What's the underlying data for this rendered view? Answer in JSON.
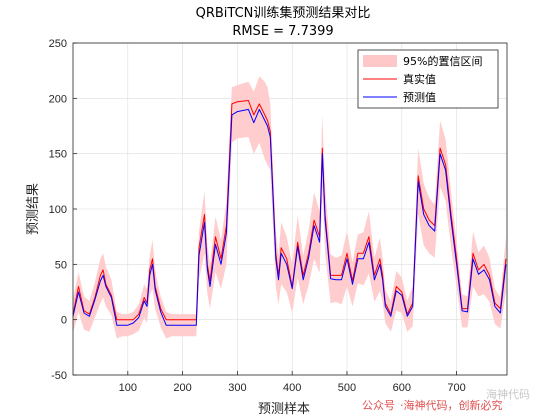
{
  "chart_data": {
    "type": "line",
    "title": "QRBiTCN训练集预测结果对比",
    "subtitle": "RMSE = 7.7399",
    "xlabel": "预测样本",
    "ylabel": "预测结果",
    "xlim": [
      0,
      792
    ],
    "ylim": [
      -50,
      250
    ],
    "xticks": [
      100,
      200,
      300,
      400,
      500,
      600,
      700
    ],
    "yticks": [
      -50,
      0,
      50,
      100,
      150,
      200,
      250
    ],
    "grid": true,
    "legend_position": "top-right",
    "series": [
      {
        "name": "95%的置信区间",
        "kind": "band",
        "color": "#ffc8c8"
      },
      {
        "name": "真实值",
        "kind": "line",
        "color": "#ff0000"
      },
      {
        "name": "预测值",
        "kind": "line",
        "color": "#0000ff"
      }
    ],
    "x": [
      0,
      10,
      20,
      30,
      40,
      50,
      55,
      60,
      70,
      80,
      90,
      100,
      110,
      120,
      130,
      135,
      140,
      145,
      150,
      155,
      160,
      170,
      180,
      190,
      200,
      210,
      220,
      225,
      230,
      240,
      245,
      250,
      260,
      270,
      280,
      290,
      300,
      320,
      330,
      340,
      350,
      355,
      360,
      370,
      375,
      380,
      390,
      400,
      410,
      420,
      430,
      440,
      450,
      455,
      460,
      470,
      480,
      490,
      500,
      510,
      520,
      530,
      540,
      550,
      560,
      565,
      570,
      580,
      590,
      600,
      610,
      620,
      630,
      640,
      650,
      660,
      670,
      680,
      690,
      700,
      710,
      720,
      730,
      740,
      750,
      760,
      770,
      780,
      790
    ],
    "real": [
      5,
      30,
      8,
      5,
      20,
      40,
      45,
      32,
      22,
      0,
      0,
      0,
      0,
      5,
      20,
      15,
      45,
      55,
      30,
      20,
      10,
      0,
      0,
      0,
      0,
      0,
      0,
      0,
      65,
      95,
      50,
      35,
      75,
      55,
      85,
      195,
      197,
      198,
      185,
      195,
      185,
      180,
      170,
      60,
      40,
      65,
      55,
      30,
      70,
      40,
      60,
      90,
      75,
      155,
      95,
      40,
      40,
      40,
      60,
      35,
      60,
      60,
      75,
      40,
      55,
      40,
      15,
      5,
      30,
      25,
      5,
      15,
      130,
      100,
      90,
      85,
      155,
      140,
      95,
      55,
      10,
      10,
      60,
      45,
      50,
      40,
      15,
      10,
      55
    ],
    "pred": [
      3,
      25,
      6,
      3,
      18,
      35,
      40,
      30,
      20,
      -5,
      -5,
      -5,
      -3,
      2,
      17,
      12,
      40,
      50,
      27,
      17,
      7,
      -5,
      -5,
      -5,
      -5,
      -5,
      -5,
      -5,
      58,
      88,
      46,
      30,
      68,
      50,
      78,
      185,
      188,
      190,
      178,
      190,
      180,
      175,
      165,
      55,
      36,
      60,
      50,
      28,
      66,
      36,
      56,
      85,
      70,
      150,
      90,
      37,
      36,
      36,
      55,
      32,
      55,
      55,
      70,
      36,
      50,
      36,
      12,
      3,
      26,
      22,
      3,
      12,
      125,
      95,
      85,
      80,
      150,
      135,
      90,
      50,
      8,
      7,
      55,
      41,
      45,
      36,
      12,
      6,
      50
    ],
    "ci_half": [
      15,
      18,
      15,
      14,
      16,
      20,
      20,
      18,
      16,
      12,
      10,
      10,
      10,
      12,
      15,
      15,
      18,
      22,
      18,
      15,
      14,
      12,
      10,
      10,
      10,
      10,
      10,
      10,
      22,
      28,
      22,
      20,
      25,
      22,
      28,
      25,
      24,
      25,
      28,
      30,
      35,
      35,
      30,
      25,
      22,
      28,
      25,
      22,
      28,
      22,
      25,
      30,
      28,
      35,
      30,
      22,
      20,
      22,
      25,
      20,
      22,
      24,
      28,
      20,
      24,
      20,
      15,
      14,
      18,
      16,
      14,
      18,
      30,
      28,
      25,
      24,
      30,
      28,
      25,
      20,
      15,
      14,
      25,
      20,
      22,
      20,
      16,
      14,
      25
    ]
  },
  "watermark": {
    "channel_label": "公众号",
    "channel_name": "·海神代码，创新必究",
    "faint_text": "海神代码"
  }
}
